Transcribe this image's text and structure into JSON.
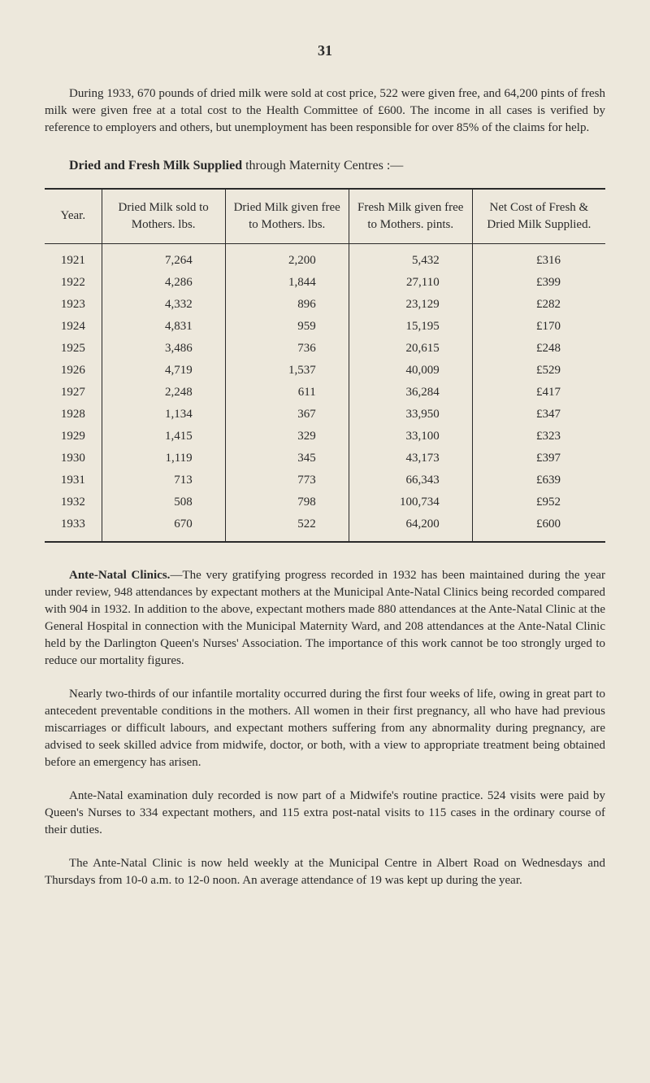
{
  "page_number": "31",
  "paragraphs": {
    "intro": "During 1933, 670 pounds of dried milk were sold at cost price, 522 were given free, and 64,200 pints of fresh milk were given free at a total cost to the Health Committee of £600. The income in all cases is verified by reference to employers and others, but unemployment has been responsible for over 85% of the claims for help.",
    "table_title_bold": "Dried and Fresh Milk Supplied",
    "table_title_rest": " through Maternity Centres :—",
    "ante_natal_bold": "Ante-Natal Clinics.",
    "ante_natal_body": "—The very gratifying progress recorded in 1932 has been maintained during the year under review, 948 attendances by expectant mothers at the Municipal Ante-Natal Clinics being recorded compared with 904 in 1932. In addition to the above, expectant mothers made 880 attendances at the Ante-Natal Clinic at the General Hospital in connection with the Municipal Maternity Ward, and 208 attendances at the Ante-Natal Clinic held by the Darlington Queen's Nurses' Association. The importance of this work cannot be too strongly urged to reduce our mortality figures.",
    "p2": "Nearly two-thirds of our infantile mortality occurred during the first four weeks of life, owing in great part to antecedent preventable conditions in the mothers. All women in their first pregnancy, all who have had previous miscarriages or difficult labours, and expectant mothers suffering from any abnormality during pregnancy, are advised to seek skilled advice from midwife, doctor, or both, with a view to appropriate treatment being obtained before an emergency has arisen.",
    "p3": "Ante-Natal examination duly recorded is now part of a Midwife's routine practice. 524 visits were paid by Queen's Nurses to 334 expectant mothers, and 115 extra post-natal visits to 115 cases in the ordinary course of their duties.",
    "p4": "The Ante-Natal Clinic is now held weekly at the Municipal Centre in Albert Road on Wednesdays and Thursdays from 10-0 a.m. to 12-0 noon. An average attendance of 19 was kept up during the year."
  },
  "table": {
    "columns": [
      "Year.",
      "Dried Milk sold to Mothers. lbs.",
      "Dried Milk given free to Mothers. lbs.",
      "Fresh Milk given free to Mothers. pints.",
      "Net Cost of Fresh & Dried Milk Supplied."
    ],
    "rows": [
      [
        "1921",
        "7,264",
        "2,200",
        "5,432",
        "£316"
      ],
      [
        "1922",
        "4,286",
        "1,844",
        "27,110",
        "£399"
      ],
      [
        "1923",
        "4,332",
        "896",
        "23,129",
        "£282"
      ],
      [
        "1924",
        "4,831",
        "959",
        "15,195",
        "£170"
      ],
      [
        "1925",
        "3,486",
        "736",
        "20,615",
        "£248"
      ],
      [
        "1926",
        "4,719",
        "1,537",
        "40,009",
        "£529"
      ],
      [
        "1927",
        "2,248",
        "611",
        "36,284",
        "£417"
      ],
      [
        "1928",
        "1,134",
        "367",
        "33,950",
        "£347"
      ],
      [
        "1929",
        "1,415",
        "329",
        "33,100",
        "£323"
      ],
      [
        "1930",
        "1,119",
        "345",
        "43,173",
        "£397"
      ],
      [
        "1931",
        "713",
        "773",
        "66,343",
        "£639"
      ],
      [
        "1932",
        "508",
        "798",
        "100,734",
        "£952"
      ],
      [
        "1933",
        "670",
        "522",
        "64,200",
        "£600"
      ]
    ]
  }
}
